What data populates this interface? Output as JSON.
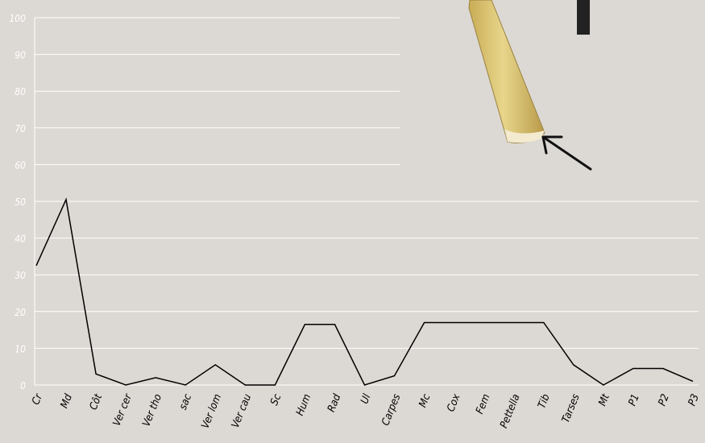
{
  "theme": {
    "background": "#dcd8d3",
    "grid_color": "#ffffff",
    "line_color": "#000000",
    "tick_label_color": "#ffffff"
  },
  "chart_data": {
    "type": "line",
    "title": "",
    "xlabel": "",
    "ylabel": "",
    "ylim": [
      0,
      100
    ],
    "yticks": [
      0,
      10,
      20,
      30,
      40,
      50,
      60,
      70,
      80,
      90,
      100
    ],
    "grid": true,
    "categories": [
      "Cr",
      "Md",
      "Côt",
      "Ver cer",
      "Ver tho",
      "sac",
      "Ver lom",
      "Ver cau",
      "Sc",
      "Hum",
      "Rad",
      "Ul",
      "Carpes",
      "Mc",
      "Cox",
      "Fem",
      "Pettella",
      "Tib",
      "Tarses",
      "Mt",
      "P1",
      "P2",
      "P3"
    ],
    "values": [
      32.5,
      50.5,
      3,
      0,
      2,
      0,
      5.5,
      0,
      0,
      16.5,
      16.5,
      0,
      2.5,
      17,
      17,
      17,
      17,
      17,
      5.5,
      0,
      4.5,
      4.5,
      1
    ]
  },
  "inset_image": {
    "icon": "bone-fragment-with-arrow"
  }
}
